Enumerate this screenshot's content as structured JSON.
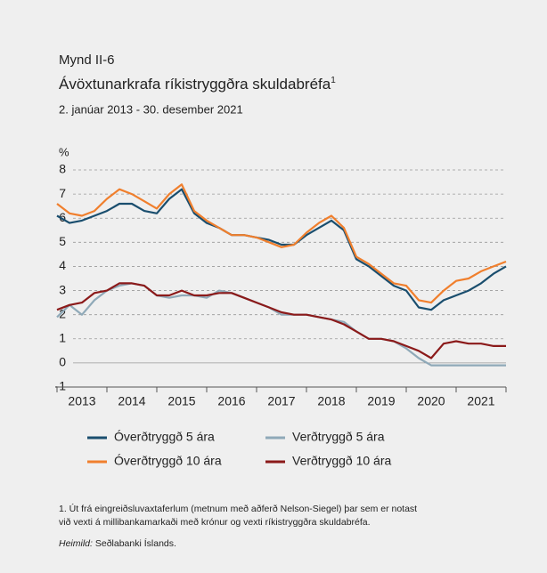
{
  "chart_data": {
    "type": "line",
    "figure_label": "Mynd II-6",
    "title": "Ávöxtunarkrafa ríkistryggðra skuldabréfa",
    "title_note": "1",
    "subtitle": "2. janúar 2013 - 30. desember 2021",
    "y_label": "%",
    "x": [
      2013,
      2013.25,
      2013.5,
      2013.75,
      2014,
      2014.25,
      2014.5,
      2014.75,
      2015,
      2015.25,
      2015.5,
      2015.75,
      2016,
      2016.25,
      2016.5,
      2016.75,
      2017,
      2017.25,
      2017.5,
      2017.75,
      2018,
      2018.25,
      2018.5,
      2018.75,
      2019,
      2019.25,
      2019.5,
      2019.75,
      2020,
      2020.25,
      2020.5,
      2020.75,
      2021,
      2021.25,
      2021.5,
      2021.75,
      2022
    ],
    "xlim": [
      2013,
      2022
    ],
    "xticks": [
      2013,
      2014,
      2015,
      2016,
      2017,
      2018,
      2019,
      2020,
      2021,
      2022
    ],
    "year_labels": [
      {
        "value": 2013.5,
        "label": "2013"
      },
      {
        "value": 2014.5,
        "label": "2014"
      },
      {
        "value": 2015.5,
        "label": "2015"
      },
      {
        "value": 2016.5,
        "label": "2016"
      },
      {
        "value": 2017.5,
        "label": "2017"
      },
      {
        "value": 2018.5,
        "label": "2018"
      },
      {
        "value": 2019.5,
        "label": "2019"
      },
      {
        "value": 2020.5,
        "label": "2020"
      },
      {
        "value": 2021.5,
        "label": "2021"
      }
    ],
    "ylim": [
      -1,
      8
    ],
    "yticks": [
      -1,
      0,
      1,
      2,
      3,
      4,
      5,
      6,
      7,
      8
    ],
    "grid": true,
    "series": [
      {
        "name": "Óverðtryggð 5 ára",
        "color": "#1a4e6e",
        "values": [
          6.1,
          5.8,
          5.9,
          6.1,
          6.3,
          6.6,
          6.6,
          6.3,
          6.2,
          6.8,
          7.2,
          6.2,
          5.8,
          5.6,
          5.3,
          5.3,
          5.2,
          5.1,
          4.9,
          4.9,
          5.3,
          5.6,
          5.9,
          5.5,
          4.3,
          4.0,
          3.6,
          3.2,
          3.0,
          2.3,
          2.2,
          2.6,
          2.8,
          3.0,
          3.3,
          3.7,
          4.0
        ]
      },
      {
        "name": "Óverðtryggð 10 ára",
        "color": "#f07f2d",
        "values": [
          6.6,
          6.2,
          6.1,
          6.3,
          6.8,
          7.2,
          7.0,
          6.7,
          6.4,
          7.0,
          7.4,
          6.3,
          5.9,
          5.6,
          5.3,
          5.3,
          5.2,
          5.0,
          4.8,
          4.9,
          5.4,
          5.8,
          6.1,
          5.6,
          4.4,
          4.1,
          3.7,
          3.3,
          3.2,
          2.6,
          2.5,
          3.0,
          3.4,
          3.5,
          3.8,
          4.0,
          4.2
        ]
      },
      {
        "name": "Verðtryggð 5 ára",
        "color": "#8fa9b8",
        "values": [
          1.9,
          2.4,
          2.0,
          2.6,
          3.0,
          3.2,
          3.3,
          3.2,
          2.8,
          2.7,
          2.8,
          2.8,
          2.7,
          3.0,
          2.9,
          2.7,
          2.5,
          2.3,
          2.0,
          2.0,
          2.0,
          1.9,
          1.8,
          1.7,
          1.3,
          1.0,
          1.0,
          0.9,
          0.6,
          0.2,
          -0.1,
          -0.1,
          -0.1,
          -0.1,
          -0.1,
          -0.1,
          -0.1
        ]
      },
      {
        "name": "Verðtryggð 10 ára",
        "color": "#8b1a1a",
        "values": [
          2.2,
          2.4,
          2.5,
          2.9,
          3.0,
          3.3,
          3.3,
          3.2,
          2.8,
          2.8,
          3.0,
          2.8,
          2.8,
          2.9,
          2.9,
          2.7,
          2.5,
          2.3,
          2.1,
          2.0,
          2.0,
          1.9,
          1.8,
          1.6,
          1.3,
          1.0,
          1.0,
          0.9,
          0.7,
          0.5,
          0.2,
          0.8,
          0.9,
          0.8,
          0.8,
          0.7,
          0.7
        ]
      }
    ],
    "footnote_1": "1. Út frá eingreiðsluvaxtaferlum (metnum með aðferð Nelson-Siegel) þar sem er notast",
    "footnote_2": "við vexti á millibankamarkaði með krónur og vexti ríkistryggðra skuldabréfa.",
    "source_label": "Heimild:",
    "source": "Seðlabanki Íslands."
  }
}
